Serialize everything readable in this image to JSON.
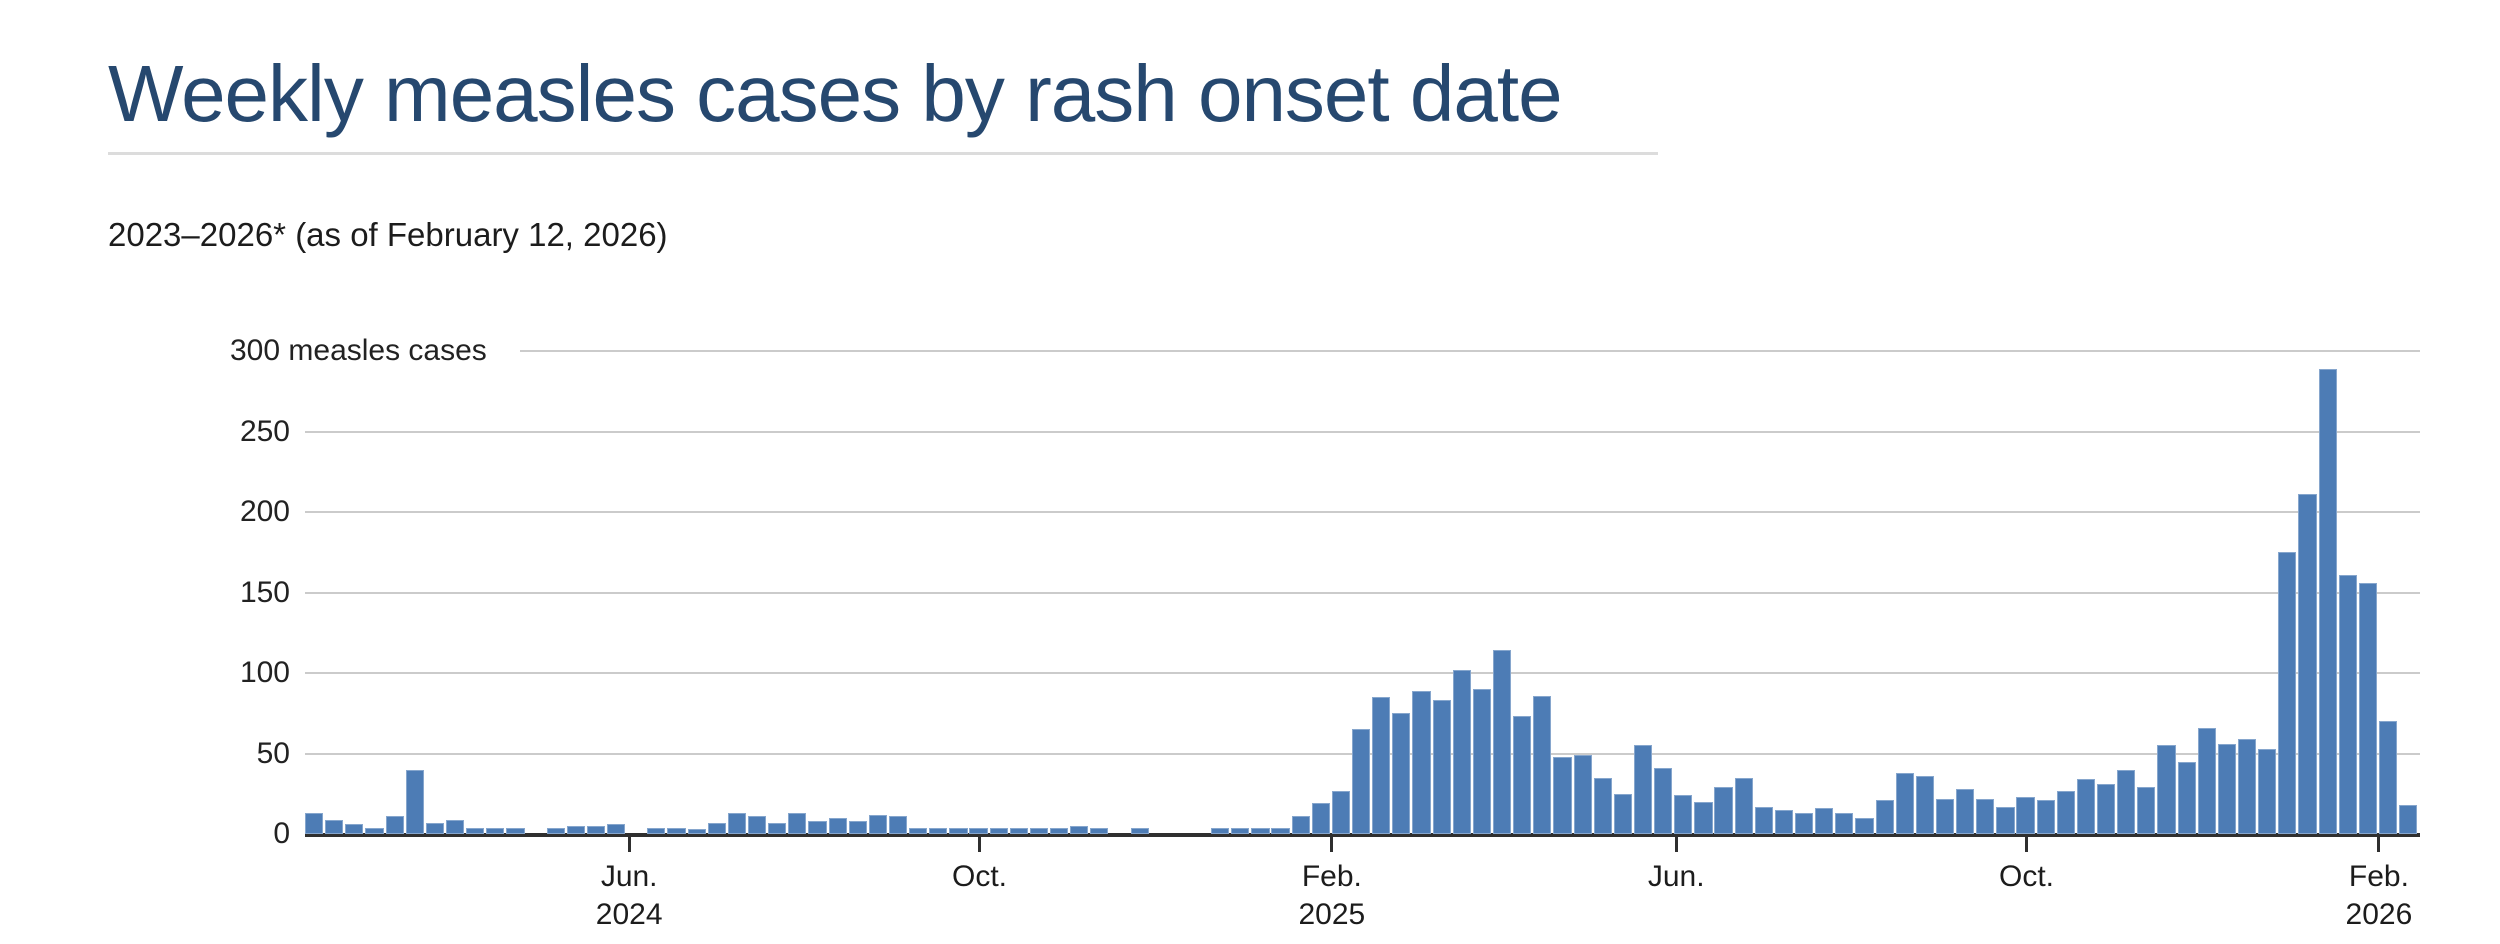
{
  "header": {
    "title": "Weekly measles cases by rash onset date",
    "subtitle": "2023–2026* (as of February 12, 2026)",
    "title_color": "#26486F",
    "underline_color": "#dcdcdc"
  },
  "chart_data": {
    "type": "bar",
    "title": "Weekly measles cases by rash onset date",
    "subtitle": "2023–2026* (as of February 12, 2026)",
    "ylabel": "measles cases",
    "ylim": [
      0,
      300
    ],
    "yticks": [
      0,
      50,
      100,
      150,
      200,
      250,
      300
    ],
    "ytick_labels": [
      "0",
      "50",
      "100",
      "150",
      "200",
      "250",
      "300 measles cases"
    ],
    "grid": true,
    "bar_color": "#4D7CB5",
    "gridline_color": "#cbcbcb",
    "axis_color": "#2f2f2f",
    "x_ticks": [
      {
        "line1": "Jun.",
        "line2": "2024",
        "week": 16.1
      },
      {
        "line1": "Oct.",
        "line2": "",
        "week": 33.5
      },
      {
        "line1": "Feb.",
        "line2": "2025",
        "week": 51.0
      },
      {
        "line1": "Jun.",
        "line2": "",
        "week": 68.1
      },
      {
        "line1": "Oct.",
        "line2": "",
        "week": 85.5
      },
      {
        "line1": "Feb.",
        "line2": "2026",
        "week": 103.0
      }
    ],
    "x_unit": "week of rash onset",
    "values": [
      13,
      9,
      6,
      4,
      11,
      40,
      7,
      9,
      4,
      4,
      4,
      0,
      4,
      5,
      5,
      6,
      0,
      4,
      4,
      3,
      7,
      13,
      11,
      7,
      13,
      8,
      10,
      8,
      12,
      11,
      4,
      4,
      4,
      4,
      4,
      4,
      4,
      4,
      5,
      4,
      0,
      4,
      0,
      0,
      0,
      4,
      4,
      4,
      4,
      11,
      19,
      27,
      65,
      85,
      75,
      89,
      83,
      102,
      90,
      114,
      73,
      86,
      48,
      49,
      35,
      25,
      55,
      41,
      24,
      20,
      29,
      35,
      17,
      15,
      13,
      16,
      13,
      10,
      21,
      38,
      36,
      22,
      28,
      22,
      17,
      23,
      21,
      27,
      34,
      31,
      40,
      29,
      55,
      45,
      66,
      56,
      59,
      53,
      175,
      211,
      289,
      161,
      156,
      70,
      18
    ]
  }
}
